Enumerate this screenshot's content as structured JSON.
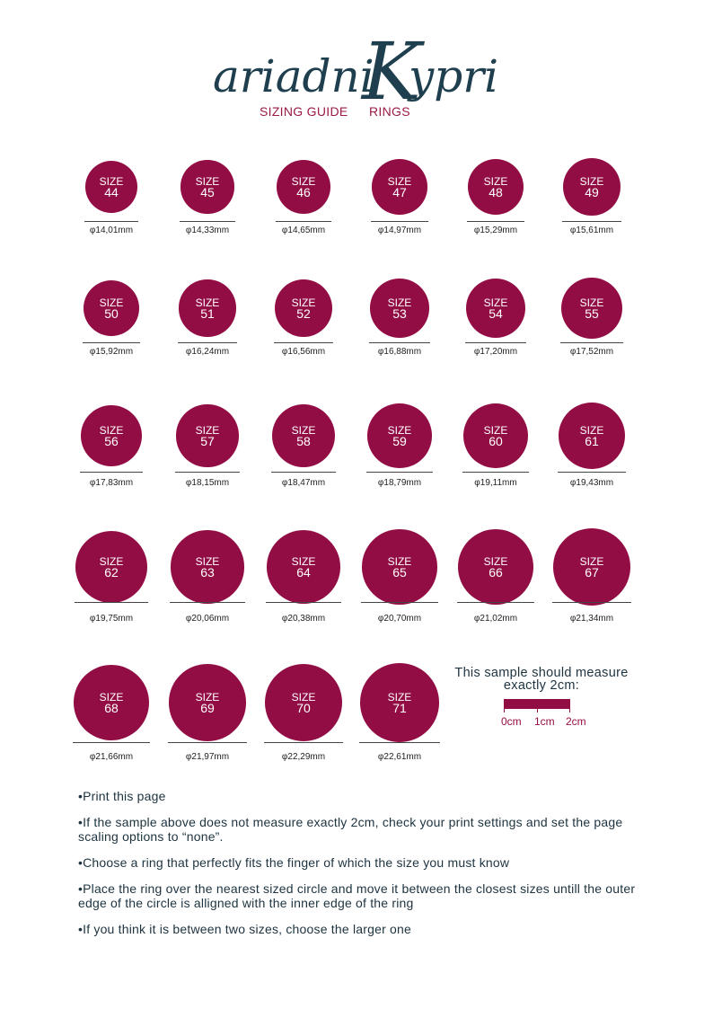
{
  "brand": {
    "name_left": "ariadni",
    "name_k": "K",
    "name_right": "ypri",
    "subtitle_left": "SIZING GUIDE",
    "subtitle_right": "RINGS"
  },
  "size_label": "SIZE",
  "rings": [
    {
      "size": "44",
      "diameter": "φ14,01mm"
    },
    {
      "size": "45",
      "diameter": "φ14,33mm"
    },
    {
      "size": "46",
      "diameter": "φ14,65mm"
    },
    {
      "size": "47",
      "diameter": "φ14,97mm"
    },
    {
      "size": "48",
      "diameter": "φ15,29mm"
    },
    {
      "size": "49",
      "diameter": "φ15,61mm"
    },
    {
      "size": "50",
      "diameter": "φ15,92mm"
    },
    {
      "size": "51",
      "diameter": "φ16,24mm"
    },
    {
      "size": "52",
      "diameter": "φ16,56mm"
    },
    {
      "size": "53",
      "diameter": "φ16,88mm"
    },
    {
      "size": "54",
      "diameter": "φ17,20mm"
    },
    {
      "size": "55",
      "diameter": "φ17,52mm"
    },
    {
      "size": "56",
      "diameter": "φ17,83mm"
    },
    {
      "size": "57",
      "diameter": "φ18,15mm"
    },
    {
      "size": "58",
      "diameter": "φ18,47mm"
    },
    {
      "size": "59",
      "diameter": "φ18,79mm"
    },
    {
      "size": "60",
      "diameter": "φ19,11mm"
    },
    {
      "size": "61",
      "diameter": "φ19,43mm"
    },
    {
      "size": "62",
      "diameter": "φ19,75mm"
    },
    {
      "size": "63",
      "diameter": "φ20,06mm"
    },
    {
      "size": "64",
      "diameter": "φ20,38mm"
    },
    {
      "size": "65",
      "diameter": "φ20,70mm"
    },
    {
      "size": "66",
      "diameter": "φ21,02mm"
    },
    {
      "size": "67",
      "diameter": "φ21,34mm"
    },
    {
      "size": "68",
      "diameter": "φ21,66mm"
    },
    {
      "size": "69",
      "diameter": "φ21,97mm"
    },
    {
      "size": "70",
      "diameter": "φ22,29mm"
    },
    {
      "size": "71",
      "diameter": "φ22,61mm"
    }
  ],
  "sample": {
    "title_line1": "This sample should measure",
    "title_line2": "exactly 2cm:",
    "ticks": [
      "0cm",
      "1cm",
      "2cm"
    ]
  },
  "instructions": [
    "•Print this page",
    "•If the sample above does not measure exactly 2cm, check your print settings and set the page scaling options to “none”.",
    "•Choose a ring that perfectly fits the finger of which the size you must know",
    "•Place the ring over the nearest sized circle and move it between the closest sizes untill the outer edge of the circle is alligned with the inner edge of the ring",
    "•If you think it is between two sizes, choose the larger one"
  ],
  "colors": {
    "accent": "#930d45",
    "text": "#1d3340"
  }
}
